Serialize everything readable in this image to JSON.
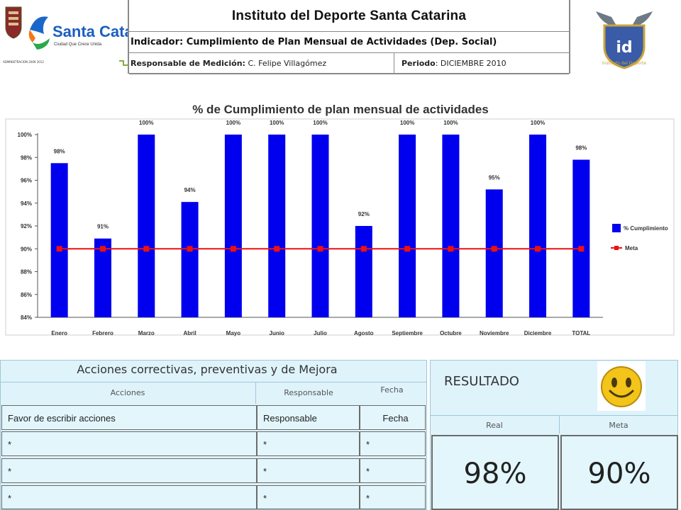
{
  "header": {
    "org_title": "Instituto del Deporte Santa Catarina",
    "indicator": "Indicador: Cumplimiento de Plan Mensual de Actividades (Dep. Social)",
    "responsable_label": "Responsable de Medición:",
    "responsable_value": "C. Felipe Villagómez",
    "periodo_label": "Periodo",
    "periodo_value": ": DICIEMBRE 2010",
    "logo_left": {
      "name": "Santa Catarina",
      "tagline": "Ciudad Que Crece Unida",
      "admin": "ADMINISTRACION 2009 2012"
    },
    "logo_right": {
      "text": "id",
      "caption": "Instituto del Deporte"
    }
  },
  "chart_data": {
    "type": "bar",
    "title": "% de Cumplimiento de plan mensual de actividades",
    "categories": [
      "Enero",
      "Febrero",
      "Marzo",
      "Abril",
      "Mayo",
      "Junio",
      "Julio",
      "Agosto",
      "Septiembre",
      "Octubre",
      "Noviembre",
      "Diciembre",
      "TOTAL"
    ],
    "series": [
      {
        "name": "% Cumplimiento",
        "type": "bar",
        "color": "#0000ee",
        "values": [
          97.5,
          90.9,
          100,
          94.1,
          100,
          100,
          100,
          92.0,
          100,
          100,
          95.2,
          100,
          97.8
        ]
      },
      {
        "name": "Meta",
        "type": "line",
        "color": "#ee1111",
        "values": [
          90,
          90,
          90,
          90,
          90,
          90,
          90,
          90,
          90,
          90,
          90,
          90,
          90
        ]
      }
    ],
    "data_labels": [
      "98%",
      "91%",
      "100%",
      "94%",
      "100%",
      "100%",
      "100%",
      "92%",
      "100%",
      "100%",
      "95%",
      "100%",
      "98%"
    ],
    "y_ticks": [
      "84%",
      "86%",
      "88%",
      "90%",
      "92%",
      "94%",
      "96%",
      "98%",
      "100%"
    ],
    "ylim": [
      84,
      100
    ],
    "grid": false,
    "legend_position": "right"
  },
  "actions": {
    "title": "Acciones correctivas, preventivas y de Mejora",
    "col_headers": [
      "Acciones",
      "Responsable",
      "Fecha"
    ],
    "rows": [
      [
        "Favor de escribir acciones",
        "Responsable",
        "Fecha"
      ],
      [
        "*",
        "*",
        "*"
      ],
      [
        "*",
        "*",
        "*"
      ],
      [
        "*",
        "*",
        "*"
      ]
    ]
  },
  "resultado": {
    "title": "RESULTADO",
    "real_label": "Real",
    "meta_label": "Meta",
    "real_value": "98%",
    "meta_value": "90%"
  }
}
